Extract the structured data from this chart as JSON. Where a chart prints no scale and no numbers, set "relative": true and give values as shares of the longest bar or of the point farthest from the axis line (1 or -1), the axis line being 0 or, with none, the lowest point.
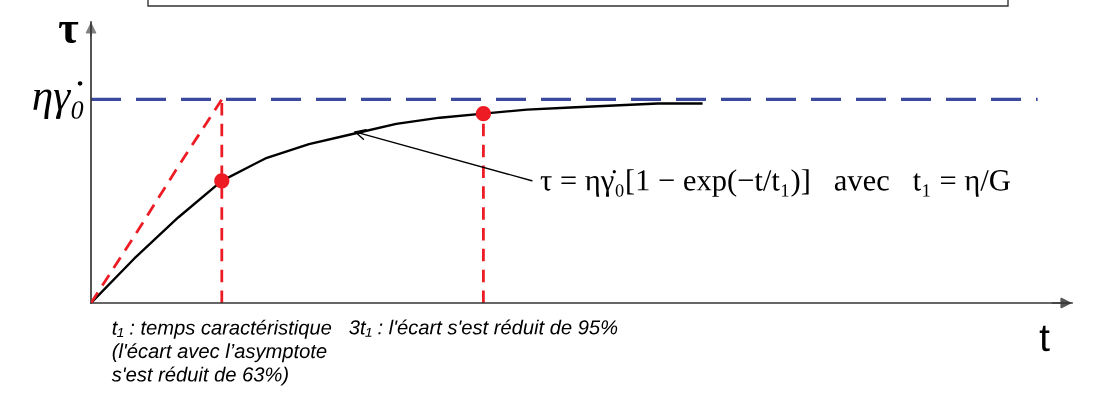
{
  "chart_data": {
    "type": "line",
    "relative": true,
    "xlabel": "t",
    "ylabel": "τ",
    "tick_labels": "x",
    "categories": [
      null,
      null,
      null,
      "t₁ : temps caractéristique\n(l'écart avec l’asymptote\ns'est réduit de 63%)",
      null,
      null,
      null,
      null,
      null,
      "3t₁ : l'écart s'est réduit de 95%",
      null,
      null,
      null,
      null,
      null,
      null,
      null,
      null,
      null,
      null,
      null,
      null,
      null
    ],
    "series": [
      {
        "color": "#000000",
        "line_style": "solid",
        "values": [
          0,
          0.22,
          0.42,
          0.6,
          0.71,
          0.78,
          0.83,
          0.88,
          0.91,
          0.93,
          0.95,
          0.96,
          0.97,
          0.98,
          0.98,
          null,
          null,
          null,
          null,
          null,
          null,
          null,
          null
        ]
      },
      {
        "type": "line",
        "color": "#ed1c24",
        "line_style": "dashed",
        "values": [
          0,
          0.33,
          0.67,
          1,
          null,
          null,
          null,
          null,
          null,
          null,
          null,
          null,
          null,
          null,
          null,
          null,
          null,
          null,
          null,
          null,
          null,
          null,
          null
        ]
      },
      {
        "type": "scatter",
        "color": "#ed1c24",
        "marker": "circle",
        "values": [
          null,
          null,
          null,
          0.6,
          null,
          null,
          null,
          null,
          null,
          0.93,
          null,
          null,
          null,
          null,
          null,
          null,
          null,
          null,
          null,
          null,
          null,
          null,
          null
        ]
      }
    ],
    "ref_lines": [
      {
        "axis": "y",
        "value": 1,
        "label": "ηγ̇₀",
        "color": "#3b4a9f",
        "line_style": "dashed"
      },
      {
        "axis": "x",
        "value": "t₁ : temps caractéristique\n(l'écart avec l’asymptote\ns'est réduit de 63%)",
        "color": "#ed1c24",
        "line_style": "dashed"
      },
      {
        "axis": "x",
        "value": "3t₁ : l'écart s'est réduit de 95%",
        "color": "#ed1c24",
        "line_style": "dashed"
      }
    ],
    "annotations": [
      "τ = ηγ̇₀[1 − exp(−t/t₁)]   avec   t₁ = η/G"
    ]
  }
}
